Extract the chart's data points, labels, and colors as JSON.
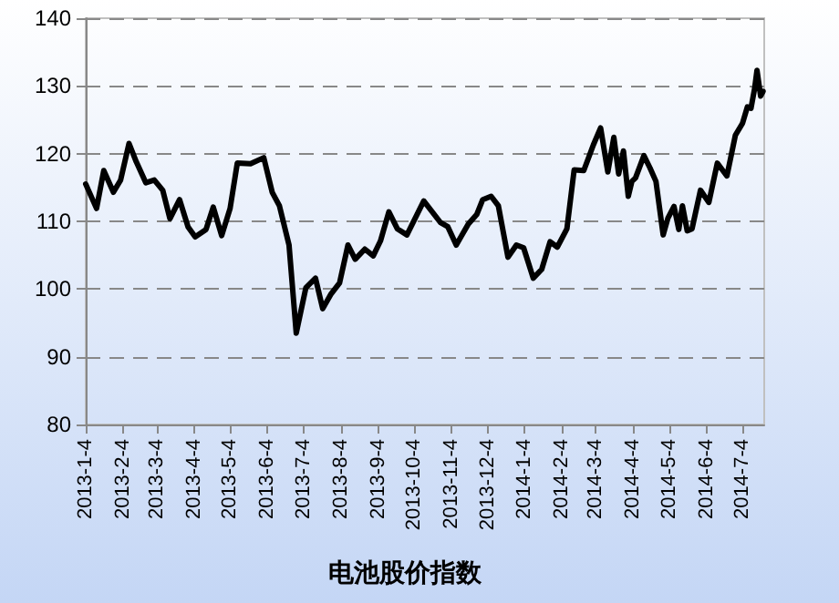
{
  "chart_data": {
    "type": "line",
    "title": "电池股价指数",
    "x": [
      "2013-01-04",
      "2013-01-13",
      "2013-01-19",
      "2013-01-27",
      "2013-02-02",
      "2013-02-09",
      "2013-02-15",
      "2013-02-23",
      "2013-03-02",
      "2013-03-09",
      "2013-03-15",
      "2013-03-23",
      "2013-03-30",
      "2013-04-05",
      "2013-04-14",
      "2013-04-20",
      "2013-04-27",
      "2013-05-04",
      "2013-05-10",
      "2013-05-21",
      "2013-06-01",
      "2013-06-08",
      "2013-06-14",
      "2013-06-22",
      "2013-06-28",
      "2013-07-06",
      "2013-07-14",
      "2013-07-20",
      "2013-07-27",
      "2013-08-03",
      "2013-08-10",
      "2013-08-16",
      "2013-08-24",
      "2013-08-31",
      "2013-09-06",
      "2013-09-13",
      "2013-09-20",
      "2013-09-28",
      "2013-10-12",
      "2013-10-26",
      "2013-11-01",
      "2013-11-08",
      "2013-11-18",
      "2013-11-25",
      "2013-11-30",
      "2013-12-07",
      "2013-12-13",
      "2013-12-21",
      "2013-12-28",
      "2014-01-03",
      "2014-01-11",
      "2014-01-18",
      "2014-01-25",
      "2014-01-31",
      "2014-02-08",
      "2014-02-14",
      "2014-02-22",
      "2014-03-02",
      "2014-03-08",
      "2014-03-14",
      "2014-03-19",
      "2014-03-23",
      "2014-03-27",
      "2014-03-31",
      "2014-04-03",
      "2014-04-06",
      "2014-04-13",
      "2014-04-18",
      "2014-04-23",
      "2014-04-29",
      "2014-05-03",
      "2014-05-08",
      "2014-05-12",
      "2014-05-15",
      "2014-05-19",
      "2014-05-23",
      "2014-05-30",
      "2014-06-06",
      "2014-06-13",
      "2014-06-21",
      "2014-06-28",
      "2014-07-04",
      "2014-07-08",
      "2014-07-11",
      "2014-07-14",
      "2014-07-16",
      "2014-07-19",
      "2014-07-21"
    ],
    "series": [
      {
        "color": "#000000",
        "values": [
          115.5,
          111.9,
          117.5,
          114.3,
          116.1,
          121.5,
          118.8,
          115.7,
          116.1,
          114.6,
          110.4,
          113.2,
          109.2,
          107.7,
          108.8,
          112.1,
          107.9,
          111.9,
          118.6,
          118.5,
          119.4,
          114.3,
          112.3,
          106.5,
          93.5,
          100.2,
          101.6,
          97.1,
          99.3,
          100.9,
          106.5,
          104.4,
          105.9,
          104.9,
          107.1,
          111.4,
          108.9,
          108,
          113,
          109.8,
          109.2,
          106.5,
          109.6,
          111,
          113.2,
          113.7,
          112.3,
          104.7,
          106.5,
          106.1,
          101.6,
          102.9,
          107,
          106.2,
          108.9,
          117.6,
          117.5,
          121.3,
          123.8,
          117.3,
          122.4,
          117,
          120.4,
          113.7,
          115.9,
          116.4,
          119.7,
          117.9,
          115.9,
          108,
          110.5,
          112.2,
          108.8,
          112.3,
          108.6,
          108.9,
          114.6,
          112.8,
          118.6,
          116.7,
          122.7,
          124.5,
          126.9,
          126.7,
          129.6,
          132.3,
          128.5,
          129.2
        ]
      }
    ],
    "xlim": [
      "2013-01-04",
      "2014-07-22"
    ],
    "xticks": [
      {
        "value": "2013-01-04",
        "label": "2013-1-4"
      },
      {
        "value": "2013-02-04",
        "label": "2013-2-4"
      },
      {
        "value": "2013-03-04",
        "label": "2013-3-4"
      },
      {
        "value": "2013-04-04",
        "label": "2013-4-4"
      },
      {
        "value": "2013-05-04",
        "label": "2013-5-4"
      },
      {
        "value": "2013-06-04",
        "label": "2013-6-4"
      },
      {
        "value": "2013-07-04",
        "label": "2013-7-4"
      },
      {
        "value": "2013-08-04",
        "label": "2013-8-4"
      },
      {
        "value": "2013-09-04",
        "label": "2013-9-4"
      },
      {
        "value": "2013-10-04",
        "label": "2013-10-4"
      },
      {
        "value": "2013-11-04",
        "label": "2013-11-4"
      },
      {
        "value": "2013-12-04",
        "label": "2013-12-4"
      },
      {
        "value": "2014-01-04",
        "label": "2014-1-4"
      },
      {
        "value": "2014-02-04",
        "label": "2014-2-4"
      },
      {
        "value": "2014-03-04",
        "label": "2014-3-4"
      },
      {
        "value": "2014-04-04",
        "label": "2014-4-4"
      },
      {
        "value": "2014-05-04",
        "label": "2014-5-4"
      },
      {
        "value": "2014-06-04",
        "label": "2014-6-4"
      },
      {
        "value": "2014-07-04",
        "label": "2014-7-4"
      }
    ],
    "ylim": [
      80,
      140
    ],
    "yticks": [
      80,
      90,
      100,
      110,
      120,
      130,
      140
    ],
    "grid": "y",
    "marker": "none",
    "line_style": "solid"
  }
}
